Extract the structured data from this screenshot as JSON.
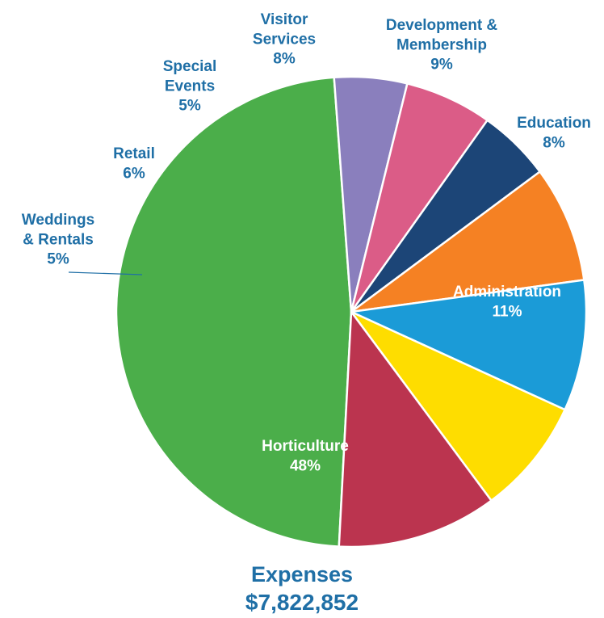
{
  "chart_data": {
    "type": "pie",
    "title": "Expenses",
    "subtitle": "$7,822,852",
    "slices": [
      {
        "label": "Horticulture",
        "value": 48,
        "value_label": "48%",
        "color": "#4bae4a"
      },
      {
        "label": "Weddings & Rentals",
        "value": 5,
        "value_label": "5%",
        "color": "#8a7fbd"
      },
      {
        "label": "Retail",
        "value": 6,
        "value_label": "6%",
        "color": "#db5c87"
      },
      {
        "label": "Special Events",
        "value": 5,
        "value_label": "5%",
        "color": "#1c4577"
      },
      {
        "label": "Visitor Services",
        "value": 8,
        "value_label": "8%",
        "color": "#f58123"
      },
      {
        "label": "Development & Membership",
        "value": 9,
        "value_label": "9%",
        "color": "#1b9bd7"
      },
      {
        "label": "Education",
        "value": 8,
        "value_label": "8%",
        "color": "#fedd00"
      },
      {
        "label": "Administration",
        "value": 11,
        "value_label": "11%",
        "color": "#bb344f"
      }
    ],
    "label_color_outside": "#1f6fa6",
    "label_color_inside": "#ffffff"
  }
}
